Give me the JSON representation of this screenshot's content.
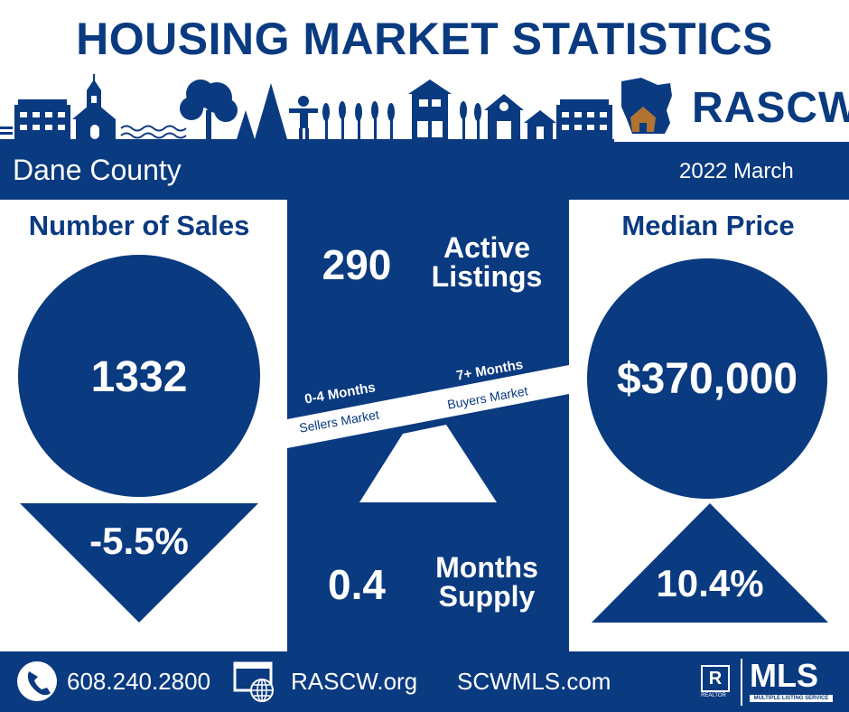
{
  "header": {
    "title": "HOUSING MARKET STATISTICS",
    "logo_text": "RASCW"
  },
  "band": {
    "county": "Dane County",
    "period": "2022 March"
  },
  "sales": {
    "title": "Number of Sales",
    "value": "1332",
    "change": "-5.5%",
    "direction": "down"
  },
  "price": {
    "title": "Median Price",
    "value": "$370,000",
    "change": "10.4%",
    "direction": "up"
  },
  "active": {
    "value": "290",
    "label_line1": "Active",
    "label_line2": "Listings"
  },
  "supply": {
    "value": "0.4",
    "label_line1": "Months",
    "label_line2": "Supply"
  },
  "seesaw": {
    "left_title": "0-4 Months",
    "left_sub": "Sellers Market",
    "right_title": "7+ Months",
    "right_sub": "Buyers Market"
  },
  "footer": {
    "phone": "608.240.2800",
    "site1": "RASCW.org",
    "site2": "SCWMLS.com",
    "realtor_mark": "R",
    "realtor_text": "REALTOR",
    "mls_text": "MLS",
    "mls_sub": "MULTIPLE LISTING SERVICE"
  },
  "icons": [
    "house-skyline",
    "wisconsin-map-icon",
    "phone-icon",
    "web-icon",
    "realtor-icon"
  ],
  "colors": {
    "navy": "#0a3a80",
    "white": "#ffffff",
    "brown": "#b27230"
  }
}
